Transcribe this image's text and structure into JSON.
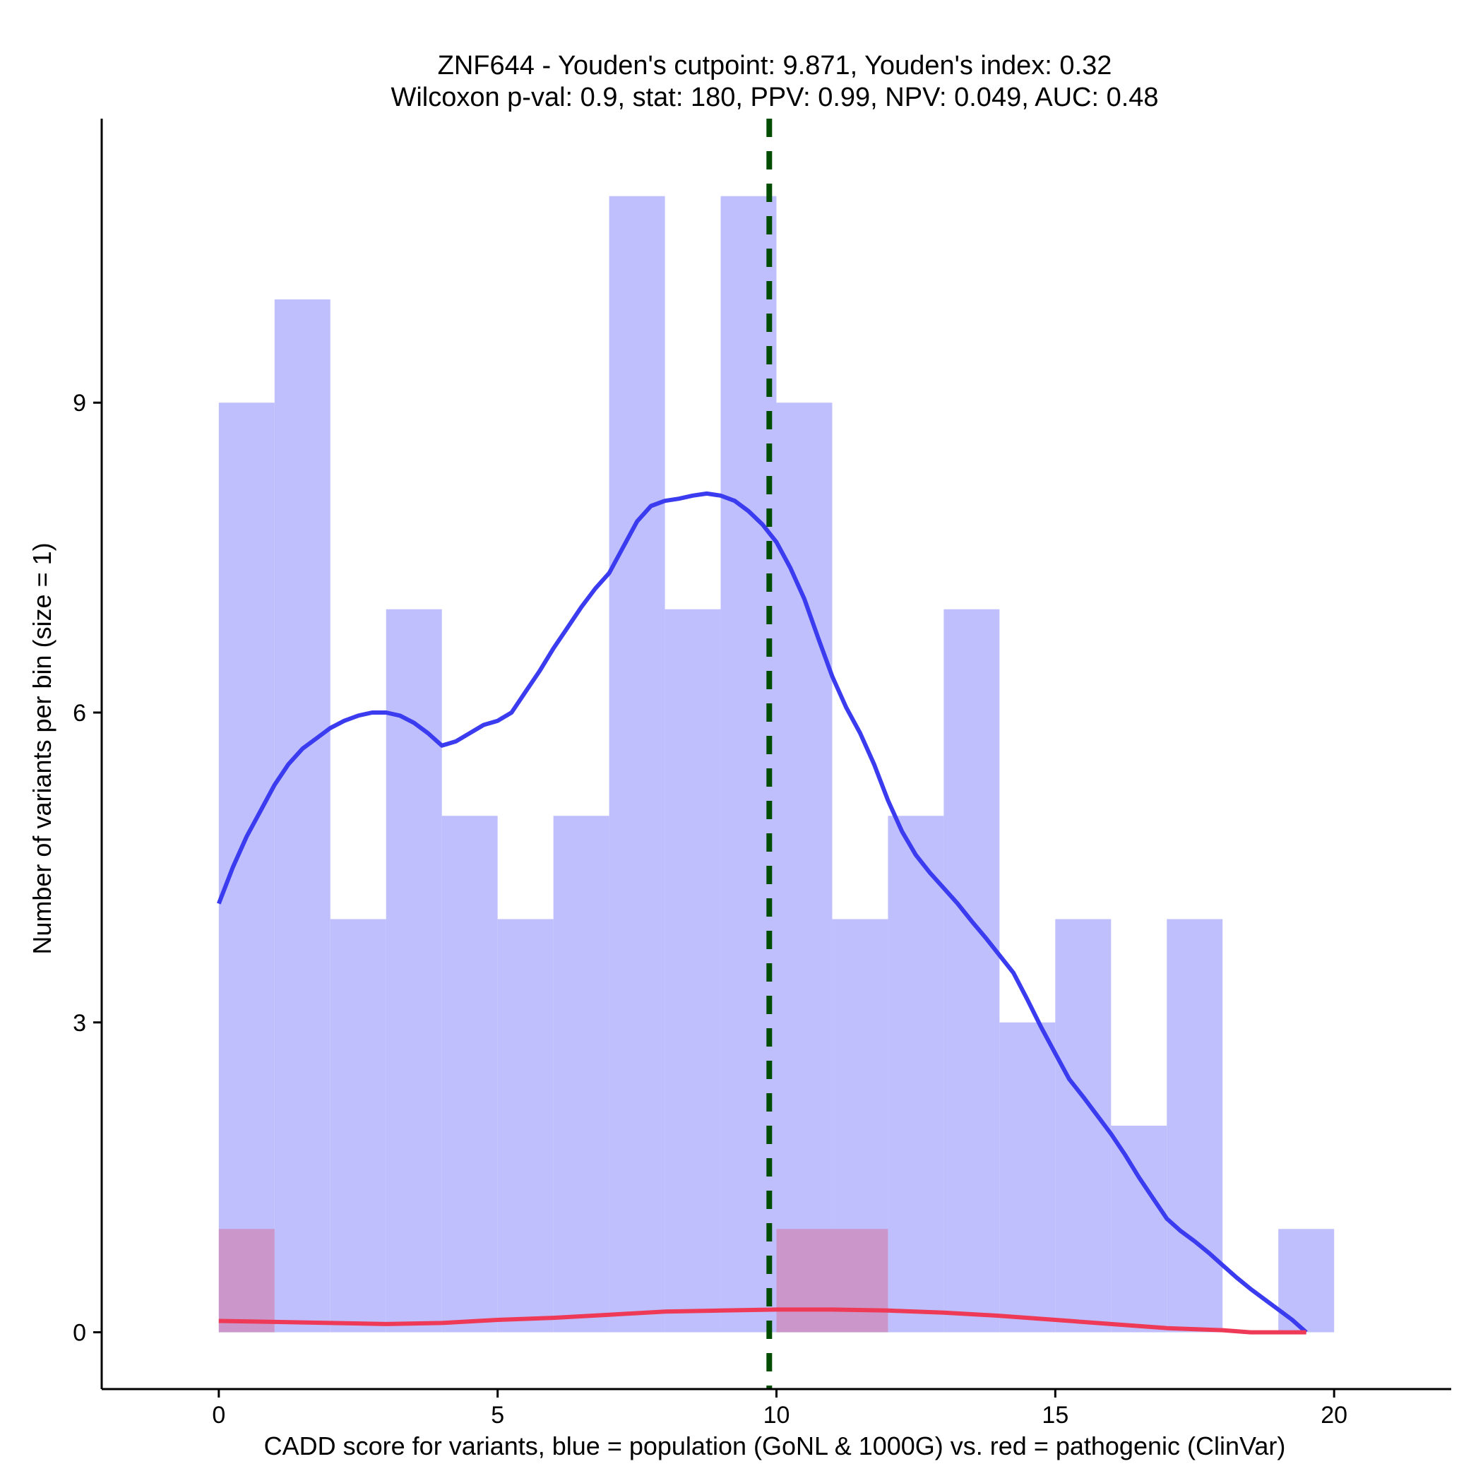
{
  "chart_data": {
    "type": "histogram",
    "title": "ZNF644 - Youden's cutpoint: 9.871, Youden's index: 0.32",
    "subtitle": "Wilcoxon p-val: 0.9, stat: 180, PPV: 0.99, NPV: 0.049, AUC: 0.48",
    "xlabel": "CADD score for variants, blue = population (GoNL & 1000G) vs. red = pathogenic (ClinVar)",
    "ylabel": "Number of variants per bin (size = 1)",
    "xlim": [
      -2.1,
      22.1
    ],
    "ylim": [
      -0.55,
      11.75
    ],
    "x_ticks": [
      0,
      5,
      10,
      15,
      20
    ],
    "x_tick_labels": [
      "0",
      "5",
      "10",
      "15",
      "20"
    ],
    "y_ticks": [
      0,
      3,
      6,
      9
    ],
    "y_tick_labels": [
      "0",
      "3",
      "6",
      "9"
    ],
    "bin_width": 1,
    "series": [
      {
        "name": "population (GoNL & 1000G)",
        "color": "#bfbffd",
        "bin_starts": [
          0,
          1,
          2,
          3,
          4,
          5,
          6,
          7,
          8,
          9,
          10,
          11,
          12,
          13,
          14,
          15,
          16,
          17,
          18,
          19
        ],
        "values": [
          9,
          10,
          4,
          7,
          5,
          4,
          5,
          11,
          7,
          11,
          9,
          4,
          5,
          7,
          3,
          4,
          2,
          4,
          0,
          1
        ]
      },
      {
        "name": "pathogenic (ClinVar)",
        "color": "#cd8fc1",
        "bin_starts": [
          0,
          1,
          2,
          3,
          4,
          5,
          6,
          7,
          8,
          9,
          10,
          11,
          12,
          13,
          14,
          15,
          16,
          17,
          18,
          19
        ],
        "values": [
          1,
          0,
          0,
          0,
          0,
          0,
          0,
          0,
          0,
          0,
          1,
          1,
          0,
          0,
          0,
          0,
          0,
          0,
          0,
          0
        ]
      }
    ],
    "density_curves": [
      {
        "name": "population density",
        "color": "#3b3bf0",
        "x": [
          0,
          0.25,
          0.5,
          0.75,
          1,
          1.25,
          1.5,
          1.75,
          2,
          2.25,
          2.5,
          2.75,
          3,
          3.25,
          3.5,
          3.75,
          4,
          4.25,
          4.5,
          4.75,
          5,
          5.25,
          5.5,
          5.75,
          6,
          6.25,
          6.5,
          6.75,
          7,
          7.25,
          7.5,
          7.75,
          8,
          8.25,
          8.5,
          8.75,
          9,
          9.25,
          9.5,
          9.75,
          10,
          10.25,
          10.5,
          10.75,
          11,
          11.25,
          11.5,
          11.75,
          12,
          12.25,
          12.5,
          12.75,
          13,
          13.25,
          13.5,
          13.75,
          14,
          14.25,
          14.5,
          14.75,
          15,
          15.25,
          15.5,
          15.75,
          16,
          16.25,
          16.5,
          16.75,
          17,
          17.25,
          17.5,
          17.75,
          18,
          18.25,
          18.5,
          18.75,
          19,
          19.25,
          19.5
        ],
        "y": [
          4.15,
          4.5,
          4.8,
          5.05,
          5.3,
          5.5,
          5.65,
          5.75,
          5.85,
          5.92,
          5.97,
          6.0,
          6.0,
          5.97,
          5.9,
          5.8,
          5.68,
          5.72,
          5.8,
          5.88,
          5.92,
          6.0,
          6.2,
          6.4,
          6.62,
          6.82,
          7.02,
          7.2,
          7.35,
          7.6,
          7.85,
          8.0,
          8.05,
          8.07,
          8.1,
          8.12,
          8.1,
          8.05,
          7.95,
          7.82,
          7.65,
          7.4,
          7.1,
          6.72,
          6.35,
          6.05,
          5.8,
          5.5,
          5.15,
          4.85,
          4.62,
          4.45,
          4.3,
          4.15,
          3.98,
          3.82,
          3.65,
          3.48,
          3.22,
          2.95,
          2.7,
          2.45,
          2.28,
          2.1,
          1.92,
          1.72,
          1.5,
          1.3,
          1.1,
          0.98,
          0.88,
          0.77,
          0.65,
          0.53,
          0.42,
          0.32,
          0.22,
          0.12,
          0.0
        ],
        "y_scale_note": "curve y in count units"
      },
      {
        "name": "pathogenic density",
        "color": "#ee3a56",
        "x": [
          0,
          1,
          2,
          3,
          4,
          5,
          6,
          7,
          8,
          9,
          10,
          11,
          12,
          13,
          14,
          15,
          16,
          17,
          18,
          18.5,
          19,
          19.5
        ],
        "y": [
          0.11,
          0.1,
          0.09,
          0.08,
          0.09,
          0.12,
          0.14,
          0.17,
          0.2,
          0.21,
          0.22,
          0.22,
          0.21,
          0.19,
          0.16,
          0.12,
          0.08,
          0.04,
          0.02,
          0.0,
          0.0,
          0.0
        ]
      }
    ],
    "cutpoint": {
      "x": 9.871,
      "color": "#004d00",
      "style": "dashed"
    },
    "grid": false,
    "legend": "none"
  }
}
